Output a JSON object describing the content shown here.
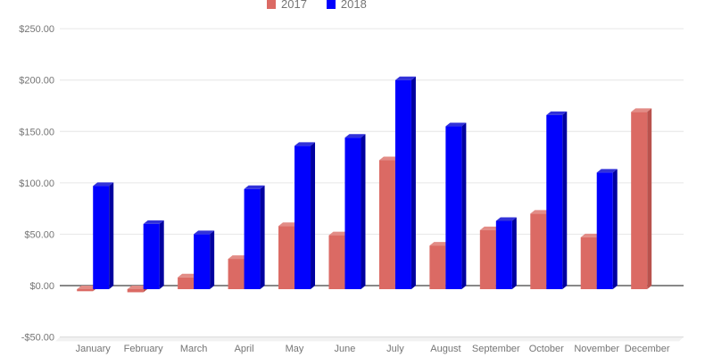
{
  "chart_data": {
    "type": "bar",
    "style": "3d-grouped-columns",
    "title": "",
    "xlabel": "",
    "ylabel": "",
    "legend_position": "top",
    "grid": true,
    "categories": [
      "January",
      "February",
      "March",
      "April",
      "May",
      "June",
      "July",
      "August",
      "September",
      "October",
      "November",
      "December"
    ],
    "series": [
      {
        "name": "2017",
        "color": "#db6a64",
        "color_side": "#b9524d",
        "color_top": "#e28c86",
        "values": [
          -2,
          -3,
          8,
          26,
          58,
          49,
          122,
          39,
          54,
          70,
          47,
          169
        ]
      },
      {
        "name": "2018",
        "color": "#0101fd",
        "color_side": "#0000a0",
        "color_top": "#3232d9",
        "values": [
          97,
          60,
          50,
          94,
          136,
          144,
          200,
          155,
          63,
          166,
          110,
          null
        ]
      }
    ],
    "y_ticks": [
      {
        "label": "$250.00",
        "value": 250
      },
      {
        "label": "$200.00",
        "value": 200
      },
      {
        "label": "$150.00",
        "value": 150
      },
      {
        "label": "$100.00",
        "value": 100
      },
      {
        "label": "$50.00",
        "value": 50
      },
      {
        "label": "$0.00",
        "value": 0
      },
      {
        "label": "-$50.00",
        "value": -50
      }
    ],
    "ylim": [
      -50,
      250
    ],
    "colors": {
      "grid_line": "#e6e6e6",
      "zero_line": "#424242",
      "axis_text": "#757575",
      "floor_fill": "#f2f2f2",
      "floor_edge": "#d9d9d9",
      "background": "#ffffff"
    }
  }
}
